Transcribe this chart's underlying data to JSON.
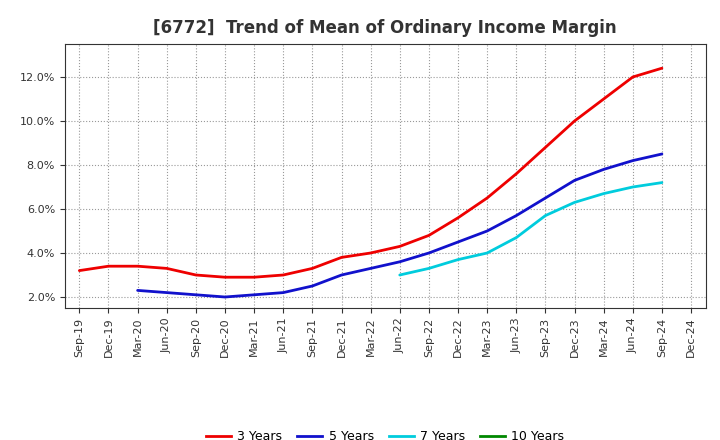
{
  "title": "[6772]  Trend of Mean of Ordinary Income Margin",
  "x_labels": [
    "Sep-19",
    "Dec-19",
    "Mar-20",
    "Jun-20",
    "Sep-20",
    "Dec-20",
    "Mar-21",
    "Jun-21",
    "Sep-21",
    "Dec-21",
    "Mar-22",
    "Jun-22",
    "Sep-22",
    "Dec-22",
    "Mar-23",
    "Jun-23",
    "Sep-23",
    "Dec-23",
    "Mar-24",
    "Jun-24",
    "Sep-24",
    "Dec-24"
  ],
  "ylim": [
    0.015,
    0.135
  ],
  "yticks": [
    0.02,
    0.04,
    0.06,
    0.08,
    0.1,
    0.12
  ],
  "series": {
    "3 Years": {
      "color": "#EE0000",
      "data": [
        0.032,
        0.034,
        0.034,
        0.033,
        0.03,
        0.029,
        0.029,
        0.03,
        0.033,
        0.038,
        0.04,
        0.043,
        0.048,
        0.056,
        0.065,
        0.076,
        0.088,
        0.1,
        0.11,
        0.12,
        0.124,
        null
      ]
    },
    "5 Years": {
      "color": "#1111CC",
      "data": [
        null,
        null,
        0.023,
        0.022,
        0.021,
        0.02,
        0.021,
        0.022,
        0.025,
        0.03,
        0.033,
        0.036,
        0.04,
        0.045,
        0.05,
        0.057,
        0.065,
        0.073,
        0.078,
        0.082,
        0.085,
        null
      ]
    },
    "7 Years": {
      "color": "#00CCDD",
      "data": [
        null,
        null,
        null,
        null,
        null,
        null,
        null,
        null,
        null,
        null,
        null,
        0.03,
        0.033,
        0.037,
        0.04,
        0.047,
        0.057,
        0.063,
        0.067,
        0.07,
        0.072,
        null
      ]
    },
    "10 Years": {
      "color": "#008800",
      "data": [
        null,
        null,
        null,
        null,
        null,
        null,
        null,
        null,
        null,
        null,
        null,
        null,
        null,
        null,
        null,
        null,
        null,
        null,
        null,
        null,
        null,
        null
      ]
    }
  },
  "legend_order": [
    "3 Years",
    "5 Years",
    "7 Years",
    "10 Years"
  ],
  "background_color": "#ffffff",
  "plot_bg_color": "#ffffff",
  "grid_color": "#999999",
  "title_fontsize": 12,
  "tick_fontsize": 8,
  "legend_fontsize": 9
}
